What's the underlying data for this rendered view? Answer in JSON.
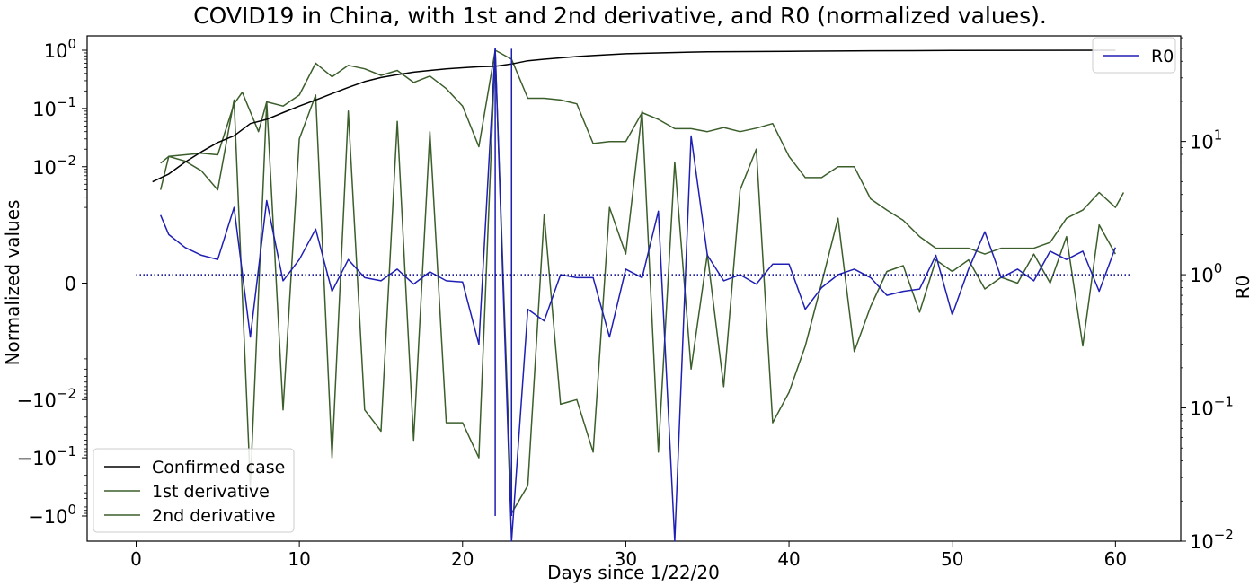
{
  "chart_data": {
    "type": "line",
    "title": "COVID19 in China, with 1st and 2nd derivative, and R0 (normalized values).",
    "xlabel": "Days since 1/22/20",
    "ylabel": "Normalized values",
    "y2label": "R0",
    "xlim": [
      -3,
      64
    ],
    "ylim_symlog": [
      -2.0,
      1.05
    ],
    "y_scale": "symlog",
    "y2_scale": "log",
    "y2lim": [
      0.01,
      62
    ],
    "grid": false,
    "x_ticks": [
      {
        "v": 0,
        "label": "0"
      },
      {
        "v": 10,
        "label": "10"
      },
      {
        "v": 20,
        "label": "20"
      },
      {
        "v": 30,
        "label": "30"
      },
      {
        "v": 40,
        "label": "40"
      },
      {
        "v": 50,
        "label": "50"
      },
      {
        "v": 60,
        "label": "60"
      }
    ],
    "y_ticks": [
      {
        "v": 1,
        "base": "10",
        "exp": "0"
      },
      {
        "v": 0.1,
        "base": "10",
        "exp": "−1"
      },
      {
        "v": 0.01,
        "base": "10",
        "exp": "−2"
      },
      {
        "v": 0,
        "base": "0",
        "exp": ""
      },
      {
        "v": -0.01,
        "base": "−10",
        "exp": "−2"
      },
      {
        "v": -0.1,
        "base": "−10",
        "exp": "−1"
      },
      {
        "v": -1,
        "base": "−10",
        "exp": "0"
      }
    ],
    "y2_ticks": [
      {
        "v": 10,
        "base": "10",
        "exp": "1"
      },
      {
        "v": 1,
        "base": "10",
        "exp": "0"
      },
      {
        "v": 0.1,
        "base": "10",
        "exp": "−1"
      },
      {
        "v": 0.01,
        "base": "10",
        "exp": "−2"
      }
    ],
    "series": [
      {
        "name": "Confirmed case",
        "axis": "left",
        "color": "#000000",
        "x": [
          1,
          2,
          3,
          4,
          5,
          6,
          7,
          8,
          9,
          10,
          11,
          12,
          13,
          14,
          15,
          16,
          17,
          18,
          19,
          20,
          21,
          22,
          23,
          24,
          25,
          26,
          27,
          28,
          29,
          30,
          32,
          35,
          40,
          45,
          50,
          55,
          60
        ],
        "y": [
          0.0055,
          0.0075,
          0.012,
          0.018,
          0.026,
          0.034,
          0.055,
          0.065,
          0.085,
          0.11,
          0.14,
          0.18,
          0.23,
          0.29,
          0.34,
          0.38,
          0.42,
          0.45,
          0.48,
          0.5,
          0.52,
          0.53,
          0.58,
          0.66,
          0.7,
          0.74,
          0.78,
          0.81,
          0.84,
          0.87,
          0.9,
          0.94,
          0.96,
          0.98,
          0.99,
          0.995,
          1.0
        ]
      },
      {
        "name": "1st derivative",
        "axis": "left",
        "color": "#3b5e2b",
        "x": [
          1.5,
          2,
          3,
          4,
          5,
          6,
          6.5,
          7.5,
          8,
          9,
          10,
          11,
          12,
          13,
          14,
          15,
          16,
          17,
          18,
          19,
          20,
          21,
          22,
          23,
          24,
          25,
          26,
          27,
          28,
          29,
          30,
          31,
          32,
          33,
          34,
          35,
          36,
          37,
          38,
          39,
          40,
          41,
          42,
          43,
          44,
          45,
          46,
          47,
          48,
          49,
          50,
          51,
          52,
          53,
          54,
          55,
          56,
          57,
          58,
          59,
          60,
          60.5
        ],
        "y": [
          0.004,
          0.015,
          0.016,
          0.017,
          0.016,
          0.12,
          0.19,
          0.04,
          0.13,
          0.11,
          0.17,
          0.6,
          0.35,
          0.55,
          0.48,
          0.37,
          0.45,
          0.28,
          0.36,
          0.22,
          0.11,
          0.022,
          1.0,
          0.7,
          0.15,
          0.15,
          0.14,
          0.12,
          0.025,
          0.027,
          0.027,
          0.085,
          0.065,
          0.045,
          0.045,
          0.04,
          0.047,
          0.04,
          0.046,
          0.055,
          0.015,
          0.0065,
          0.0065,
          0.01,
          0.01,
          0.0028,
          0.0018,
          0.0012,
          0.0008,
          0.0006,
          0.0006,
          0.0006,
          0.0005,
          0.0006,
          0.0006,
          0.0006,
          0.0007,
          0.0013,
          0.0018,
          0.0036,
          0.002,
          0.0036
        ]
      },
      {
        "name": "2nd derivative",
        "axis": "left",
        "color": "#3b5e2b",
        "x": [
          1.5,
          2,
          3,
          4,
          5,
          6,
          7,
          8,
          9,
          10,
          11,
          12,
          13,
          14,
          15,
          16,
          17,
          18,
          19,
          20,
          21,
          22,
          23,
          24,
          25,
          26,
          27,
          28,
          29,
          30,
          31,
          32,
          33,
          34,
          35,
          36,
          37,
          38,
          39,
          40,
          41,
          42,
          43,
          44,
          45,
          46,
          47,
          48,
          49,
          50,
          51,
          52,
          53,
          54,
          55,
          56,
          57,
          58,
          59,
          60
        ],
        "y": [
          0.0115,
          0.015,
          0.0125,
          0.0085,
          0.004,
          0.14,
          -0.3,
          0.13,
          -0.015,
          0.03,
          0.17,
          -0.1,
          0.09,
          -0.015,
          -0.035,
          0.06,
          -0.05,
          0.04,
          -0.025,
          -0.025,
          -0.1,
          1.0,
          -0.9,
          -0.3,
          0.0015,
          -0.012,
          -0.01,
          -0.08,
          0.002,
          0.0005,
          0.09,
          -0.08,
          0.012,
          -0.003,
          0.0005,
          -0.006,
          0.004,
          0.02,
          -0.025,
          -0.0075,
          -0.0012,
          0.0,
          0.0013,
          -0.0015,
          -0.0004,
          0.0002,
          0.0003,
          -0.0005,
          0.0004,
          0.0002,
          0.0004,
          -0.0001,
          0.0001,
          0.0,
          0.0005,
          0.0,
          0.0008,
          -0.0012,
          0.001,
          0.0005
        ]
      },
      {
        "name": "R0",
        "axis": "right",
        "color": "#1f1fb4",
        "x": [
          1.5,
          2,
          3,
          4,
          5,
          6,
          7,
          8,
          9,
          10,
          11,
          12,
          13,
          14,
          15,
          16,
          17,
          18,
          19,
          20,
          21,
          22,
          23,
          24,
          25,
          26,
          27,
          28,
          29,
          30,
          31,
          32,
          33,
          34,
          35,
          36,
          37,
          38,
          39,
          40,
          41,
          42,
          43,
          44,
          45,
          46,
          47,
          48,
          49,
          50,
          51,
          52,
          53,
          54,
          55,
          56,
          57,
          58,
          59,
          60
        ],
        "y": [
          2.8,
          2.0,
          1.6,
          1.4,
          1.3,
          3.2,
          0.34,
          3.6,
          0.9,
          1.3,
          2.2,
          0.75,
          1.3,
          0.95,
          0.9,
          1.1,
          0.85,
          1.05,
          0.9,
          0.88,
          0.3,
          50,
          0.01,
          0.55,
          0.45,
          1.0,
          0.95,
          0.95,
          0.34,
          1.1,
          0.95,
          3.0,
          0.01,
          11,
          1.4,
          0.9,
          1.0,
          0.85,
          1.2,
          1.2,
          0.55,
          0.8,
          1.0,
          1.1,
          0.95,
          0.7,
          0.75,
          0.78,
          1.4,
          0.5,
          1.1,
          2.1,
          0.95,
          1.1,
          0.9,
          1.5,
          1.3,
          1.5,
          0.75,
          1.6
        ]
      }
    ],
    "reference_line": {
      "axis": "right",
      "y": 1,
      "x": [
        0,
        61
      ],
      "style": "dotted",
      "color": "#00008b"
    },
    "vertical_lines": [
      {
        "x": 22,
        "color": "#1f1fb4"
      },
      {
        "x": 23,
        "color": "#1f1fb4"
      }
    ],
    "legends": [
      {
        "placement": "lower-left",
        "entries": [
          "Confirmed case",
          "1st derivative",
          "2nd derivative"
        ]
      },
      {
        "placement": "upper-right",
        "entries": [
          "R0"
        ]
      }
    ]
  }
}
